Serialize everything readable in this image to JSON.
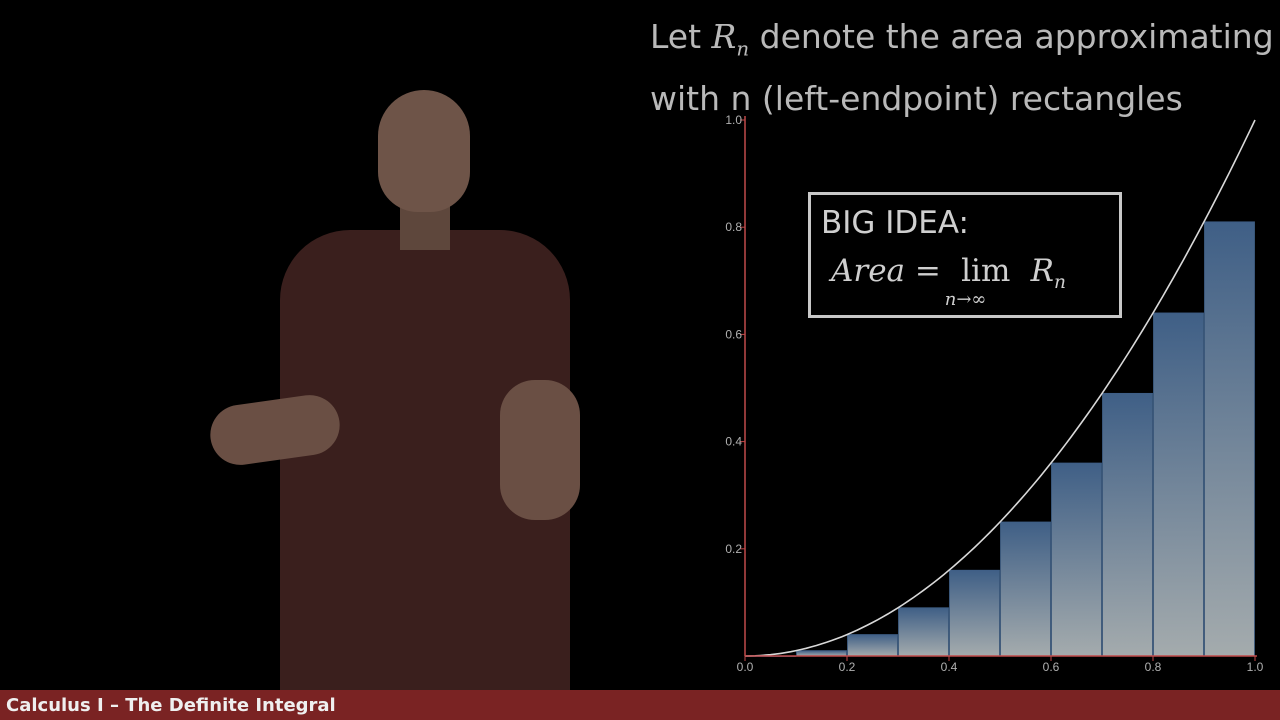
{
  "headline": {
    "line1_prefix": "Let",
    "symbol_base": "R",
    "symbol_sub": "n",
    "line1_suffix": "denote the area approximating",
    "line2": "with n (left-endpoint) rectangles"
  },
  "big_idea": {
    "title": "BIG IDEA:",
    "lhs": "Area",
    "equals": "=",
    "lim": "lim",
    "lim_sub": "n→∞",
    "rhs_base": "R",
    "rhs_sub": "n"
  },
  "footer": {
    "text": "Calculus I – The Definite Integral",
    "color": "#7a2323"
  },
  "colors": {
    "axis": "#c04a4a",
    "tick_label": "#b0b0b0",
    "curve": "#d9d9d9",
    "rect_top": "#3f5f86",
    "rect_bottom": "#a4abad"
  },
  "chart_data": {
    "type": "bar",
    "function": "x^2",
    "xlim": [
      0,
      1
    ],
    "ylim": [
      0,
      1
    ],
    "x_ticks": [
      "0.0",
      "0.2",
      "0.4",
      "0.6",
      "0.8",
      "1.0"
    ],
    "y_ticks": [
      "0.2",
      "0.4",
      "0.6",
      "0.8",
      "1.0"
    ],
    "grid": false,
    "rectangles": {
      "left_endpoints": [
        0.0,
        0.1,
        0.2,
        0.3,
        0.4,
        0.5,
        0.6,
        0.7,
        0.8,
        0.9
      ],
      "width": 0.1,
      "heights": [
        0.0,
        0.01,
        0.04,
        0.09,
        0.16,
        0.25,
        0.36,
        0.49,
        0.64,
        0.81
      ]
    }
  }
}
